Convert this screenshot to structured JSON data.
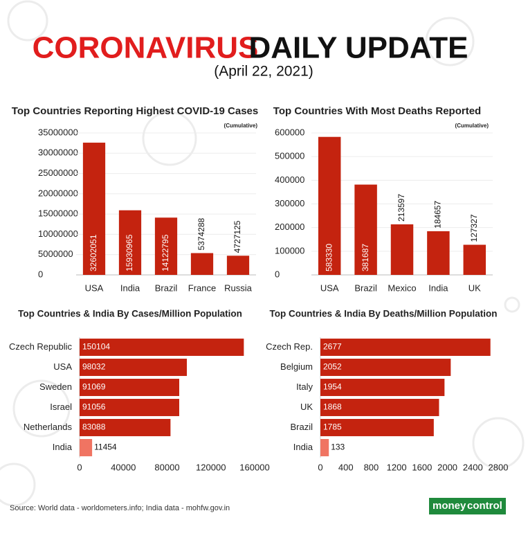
{
  "header": {
    "title_red": "CORONAVIRUS",
    "title_black": "DAILY UPDATE",
    "date": "(April 22, 2021)"
  },
  "chart_data": [
    {
      "type": "bar",
      "title": "Top Countries Reporting Highest COVID-19 Cases",
      "note": "(Cumulative)",
      "categories": [
        "USA",
        "India",
        "Brazil",
        "France",
        "Russia"
      ],
      "values": [
        32602051,
        15930965,
        14122795,
        5374288,
        4727125
      ],
      "color": "#c4230f",
      "ylim": [
        0,
        35000000
      ],
      "yticks": [
        0,
        5000000,
        10000000,
        15000000,
        20000000,
        25000000,
        30000000,
        35000000
      ],
      "grid": true
    },
    {
      "type": "bar",
      "title": "Top Countries With Most Deaths Reported",
      "note": "(Cumulative)",
      "categories": [
        "USA",
        "Brazil",
        "Mexico",
        "India",
        "UK"
      ],
      "values": [
        583330,
        381687,
        213597,
        184657,
        127327
      ],
      "color": "#c4230f",
      "ylim": [
        0,
        600000
      ],
      "yticks": [
        0,
        100000,
        200000,
        300000,
        400000,
        500000,
        600000
      ],
      "grid": true
    },
    {
      "type": "barh",
      "title": "Top Countries & India By Cases/Million Population",
      "categories": [
        "Czech Republic",
        "USA",
        "Sweden",
        "Israel",
        "Netherlands",
        "India"
      ],
      "values": [
        150104,
        98032,
        91069,
        91056,
        83088,
        11454
      ],
      "colors": [
        "#c4230f",
        "#c4230f",
        "#c4230f",
        "#c4230f",
        "#c4230f",
        "#f07462"
      ],
      "xlim": [
        0,
        160000
      ],
      "xticks": [
        0,
        40000,
        80000,
        120000,
        160000
      ],
      "grid": false
    },
    {
      "type": "barh",
      "title": "Top Countries & India By Deaths/Million Population",
      "categories": [
        "Czech Rep.",
        "Belgium",
        "Italy",
        "UK",
        "Brazil",
        "India"
      ],
      "values": [
        2677,
        2052,
        1954,
        1868,
        1785,
        133
      ],
      "colors": [
        "#c4230f",
        "#c4230f",
        "#c4230f",
        "#c4230f",
        "#c4230f",
        "#f07462"
      ],
      "xlim": [
        0,
        2800
      ],
      "xticks": [
        0,
        400,
        800,
        1200,
        1600,
        2000,
        2400,
        2800
      ],
      "grid": false
    }
  ],
  "footer": {
    "source": "Source: World data - worldometers.info; India data - mohfw.gov.in",
    "logo_1": "money",
    "logo_2": "control"
  }
}
